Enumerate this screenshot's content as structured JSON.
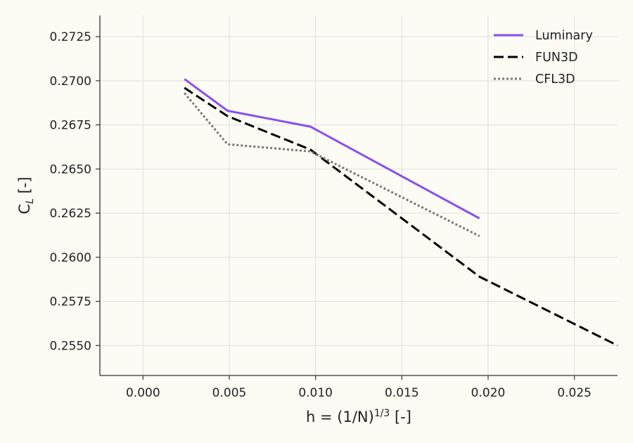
{
  "chart_data": {
    "type": "line",
    "xlabel": {
      "prefix": "h = (1/N)",
      "sup": "1/3",
      "suffix": " [-]"
    },
    "ylabel": {
      "main": "C",
      "sub": "L",
      "suffix": " [-]"
    },
    "xlim": [
      -0.0025,
      0.0275
    ],
    "ylim": [
      0.2533,
      0.2737
    ],
    "xticks": [
      0.0,
      0.005,
      0.01,
      0.015,
      0.02,
      0.025
    ],
    "xtick_labels": [
      "0.000",
      "0.005",
      "0.010",
      "0.015",
      "0.020",
      "0.025"
    ],
    "yticks": [
      0.255,
      0.2575,
      0.26,
      0.2625,
      0.265,
      0.2675,
      0.27,
      0.2725
    ],
    "ytick_labels": [
      "0.2550",
      "0.2575",
      "0.2600",
      "0.2625",
      "0.2650",
      "0.2675",
      "0.2700",
      "0.2725"
    ],
    "grid": true,
    "legend_position": "top-right",
    "series": [
      {
        "name": "Luminary",
        "color": "#8b4ef0",
        "style": "solid",
        "x": [
          0.0024,
          0.0049,
          0.0097,
          0.0195
        ],
        "y": [
          0.2701,
          0.2683,
          0.2674,
          0.2622
        ]
      },
      {
        "name": "FUN3D",
        "color": "#000000",
        "style": "dashed",
        "x": [
          0.0024,
          0.0049,
          0.0097,
          0.0195,
          0.0275
        ],
        "y": [
          0.2696,
          0.268,
          0.2661,
          0.2589,
          0.255
        ]
      },
      {
        "name": "CFL3D",
        "color": "#777777",
        "style": "dotted",
        "x": [
          0.0024,
          0.0049,
          0.0097,
          0.0195
        ],
        "y": [
          0.2693,
          0.2664,
          0.266,
          0.2612
        ]
      }
    ]
  }
}
